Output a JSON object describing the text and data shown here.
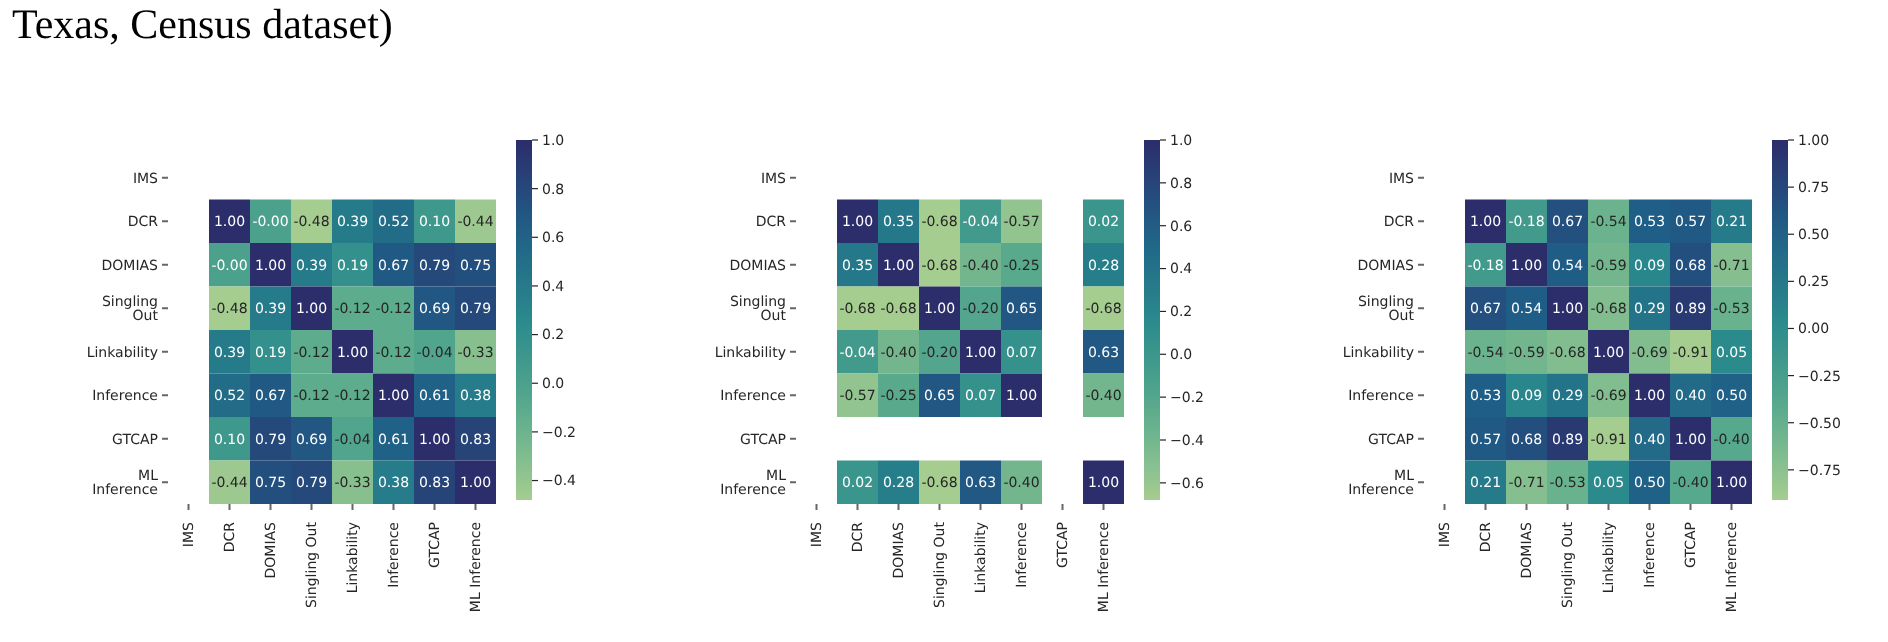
{
  "chart_data": [
    {
      "type": "heatmap",
      "annotations": [
        "Texas, Census dataset)"
      ],
      "categories": [
        "IMS",
        "DCR",
        "DOMIAS",
        "Singling Out",
        "Linkability",
        "Inference",
        "GTCAP",
        "ML Inference"
      ],
      "y_categories": [
        "IMS",
        "DCR",
        "DOMIAS",
        "Singling Out",
        "Linkability",
        "Inference",
        "GTCAP",
        "ML Inference"
      ],
      "cells": [
        [
          null,
          null,
          null,
          null,
          null,
          null,
          null,
          null
        ],
        [
          null,
          1.0,
          0.0,
          -0.48,
          0.39,
          0.52,
          0.1,
          -0.44
        ],
        [
          null,
          0.0,
          1.0,
          0.39,
          0.19,
          0.67,
          0.79,
          0.75
        ],
        [
          null,
          -0.48,
          0.39,
          1.0,
          -0.12,
          -0.12,
          0.69,
          0.79
        ],
        [
          null,
          0.39,
          0.19,
          -0.12,
          1.0,
          -0.12,
          -0.04,
          -0.33
        ],
        [
          null,
          0.52,
          0.67,
          -0.12,
          -0.12,
          1.0,
          0.61,
          0.38
        ],
        [
          null,
          0.1,
          0.79,
          0.69,
          -0.04,
          0.61,
          1.0,
          0.83
        ],
        [
          null,
          -0.44,
          0.75,
          0.79,
          -0.33,
          0.38,
          0.83,
          1.0
        ]
      ],
      "cell_labels": [
        [
          null,
          null,
          null,
          null,
          null,
          null,
          null,
          null
        ],
        [
          null,
          "1.00",
          "-0.00",
          "-0.48",
          "0.39",
          "0.52",
          "0.10",
          "-0.44"
        ],
        [
          null,
          "-0.00",
          "1.00",
          "0.39",
          "0.19",
          "0.67",
          "0.79",
          "0.75"
        ],
        [
          null,
          "-0.48",
          "0.39",
          "1.00",
          "-0.12",
          "-0.12",
          "0.69",
          "0.79"
        ],
        [
          null,
          "0.39",
          "0.19",
          "-0.12",
          "1.00",
          "-0.12",
          "-0.04",
          "-0.33"
        ],
        [
          null,
          "0.52",
          "0.67",
          "-0.12",
          "-0.12",
          "1.00",
          "0.61",
          "0.38"
        ],
        [
          null,
          "0.10",
          "0.79",
          "0.69",
          "-0.04",
          "0.61",
          "1.00",
          "0.83"
        ],
        [
          null,
          "-0.44",
          "0.75",
          "0.79",
          "-0.33",
          "0.38",
          "0.83",
          "1.00"
        ]
      ],
      "clim": [
        -0.48,
        1.0
      ],
      "cticks": [
        {
          "value": -0.4,
          "label": "−0.4"
        },
        {
          "value": -0.2,
          "label": "−0.2"
        },
        {
          "value": 0,
          "label": "0.0"
        },
        {
          "value": 0.2,
          "label": "0.2"
        },
        {
          "value": 0.4,
          "label": "0.4"
        },
        {
          "value": 0.6,
          "label": "0.6"
        },
        {
          "value": 0.8,
          "label": "0.8"
        },
        {
          "value": 1.0,
          "label": "1.0"
        }
      ]
    },
    {
      "type": "heatmap",
      "categories": [
        "IMS",
        "DCR",
        "DOMIAS",
        "Singling Out",
        "Linkability",
        "Inference",
        "GTCAP",
        "ML Inference"
      ],
      "y_categories": [
        "IMS",
        "DCR",
        "DOMIAS",
        "Singling Out",
        "Linkability",
        "Inference",
        "GTCAP",
        "ML Inference"
      ],
      "cells": [
        [
          null,
          null,
          null,
          null,
          null,
          null,
          null,
          null
        ],
        [
          null,
          1.0,
          0.35,
          -0.68,
          -0.04,
          -0.57,
          null,
          0.02
        ],
        [
          null,
          0.35,
          1.0,
          -0.68,
          -0.4,
          -0.25,
          null,
          0.28
        ],
        [
          null,
          -0.68,
          -0.68,
          1.0,
          -0.2,
          0.65,
          null,
          -0.68
        ],
        [
          null,
          -0.04,
          -0.4,
          -0.2,
          1.0,
          0.07,
          null,
          0.63
        ],
        [
          null,
          -0.57,
          -0.25,
          0.65,
          0.07,
          1.0,
          null,
          -0.4
        ],
        [
          null,
          null,
          null,
          null,
          null,
          null,
          null,
          null
        ],
        [
          null,
          0.02,
          0.28,
          -0.68,
          0.63,
          -0.4,
          null,
          1.0
        ]
      ],
      "cell_labels": [
        [
          null,
          null,
          null,
          null,
          null,
          null,
          null,
          null
        ],
        [
          null,
          "1.00",
          "0.35",
          "-0.68",
          "-0.04",
          "-0.57",
          null,
          "0.02"
        ],
        [
          null,
          "0.35",
          "1.00",
          "-0.68",
          "-0.40",
          "-0.25",
          null,
          "0.28"
        ],
        [
          null,
          "-0.68",
          "-0.68",
          "1.00",
          "-0.20",
          "0.65",
          null,
          "-0.68"
        ],
        [
          null,
          "-0.04",
          "-0.40",
          "-0.20",
          "1.00",
          "0.07",
          null,
          "0.63"
        ],
        [
          null,
          "-0.57",
          "-0.25",
          "0.65",
          "0.07",
          "1.00",
          null,
          "-0.40"
        ],
        [
          null,
          null,
          null,
          null,
          null,
          null,
          null,
          null
        ],
        [
          null,
          "0.02",
          "0.28",
          "-0.68",
          "0.63",
          "-0.40",
          null,
          "1.00"
        ]
      ],
      "clim": [
        -0.68,
        1.0
      ],
      "cticks": [
        {
          "value": -0.6,
          "label": "−0.6"
        },
        {
          "value": -0.4,
          "label": "−0.4"
        },
        {
          "value": -0.2,
          "label": "−0.2"
        },
        {
          "value": 0,
          "label": "0.0"
        },
        {
          "value": 0.2,
          "label": "0.2"
        },
        {
          "value": 0.4,
          "label": "0.4"
        },
        {
          "value": 0.6,
          "label": "0.6"
        },
        {
          "value": 0.8,
          "label": "0.8"
        },
        {
          "value": 1.0,
          "label": "1.0"
        }
      ]
    },
    {
      "type": "heatmap",
      "categories": [
        "IMS",
        "DCR",
        "DOMIAS",
        "Singling Out",
        "Linkability",
        "Inference",
        "GTCAP",
        "ML Inference"
      ],
      "y_categories": [
        "IMS",
        "DCR",
        "DOMIAS",
        "Singling Out",
        "Linkability",
        "Inference",
        "GTCAP",
        "ML Inference"
      ],
      "cells": [
        [
          null,
          null,
          null,
          null,
          null,
          null,
          null,
          null
        ],
        [
          null,
          1.0,
          -0.18,
          0.67,
          -0.54,
          0.53,
          0.57,
          0.21
        ],
        [
          null,
          -0.18,
          1.0,
          0.54,
          -0.59,
          0.09,
          0.68,
          -0.71
        ],
        [
          null,
          0.67,
          0.54,
          1.0,
          -0.68,
          0.29,
          0.89,
          -0.53
        ],
        [
          null,
          -0.54,
          -0.59,
          -0.68,
          1.0,
          -0.69,
          -0.91,
          0.05
        ],
        [
          null,
          0.53,
          0.09,
          0.29,
          -0.69,
          1.0,
          0.4,
          0.5
        ],
        [
          null,
          0.57,
          0.68,
          0.89,
          -0.91,
          0.4,
          1.0,
          -0.4
        ],
        [
          null,
          0.21,
          -0.71,
          -0.53,
          0.05,
          0.5,
          -0.4,
          1.0
        ]
      ],
      "cell_labels": [
        [
          null,
          null,
          null,
          null,
          null,
          null,
          null,
          null
        ],
        [
          null,
          "1.00",
          "-0.18",
          "0.67",
          "-0.54",
          "0.53",
          "0.57",
          "0.21"
        ],
        [
          null,
          "-0.18",
          "1.00",
          "0.54",
          "-0.59",
          "0.09",
          "0.68",
          "-0.71"
        ],
        [
          null,
          "0.67",
          "0.54",
          "1.00",
          "-0.68",
          "0.29",
          "0.89",
          "-0.53"
        ],
        [
          null,
          "-0.54",
          "-0.59",
          "-0.68",
          "1.00",
          "-0.69",
          "-0.91",
          "0.05"
        ],
        [
          null,
          "0.53",
          "0.09",
          "0.29",
          "-0.69",
          "1.00",
          "0.40",
          "0.50"
        ],
        [
          null,
          "0.57",
          "0.68",
          "0.89",
          "-0.91",
          "0.40",
          "1.00",
          "-0.40"
        ],
        [
          null,
          "0.21",
          "-0.71",
          "-0.53",
          "0.05",
          "0.50",
          "-0.40",
          "1.00"
        ]
      ],
      "clim": [
        -0.91,
        1.0
      ],
      "cticks": [
        {
          "value": -0.75,
          "label": "−0.75"
        },
        {
          "value": -0.5,
          "label": "−0.50"
        },
        {
          "value": -0.25,
          "label": "−0.25"
        },
        {
          "value": 0,
          "label": "0.00"
        },
        {
          "value": 0.25,
          "label": "0.25"
        },
        {
          "value": 0.5,
          "label": "0.50"
        },
        {
          "value": 0.75,
          "label": "0.75"
        },
        {
          "value": 1.0,
          "label": "1.00"
        }
      ]
    }
  ]
}
